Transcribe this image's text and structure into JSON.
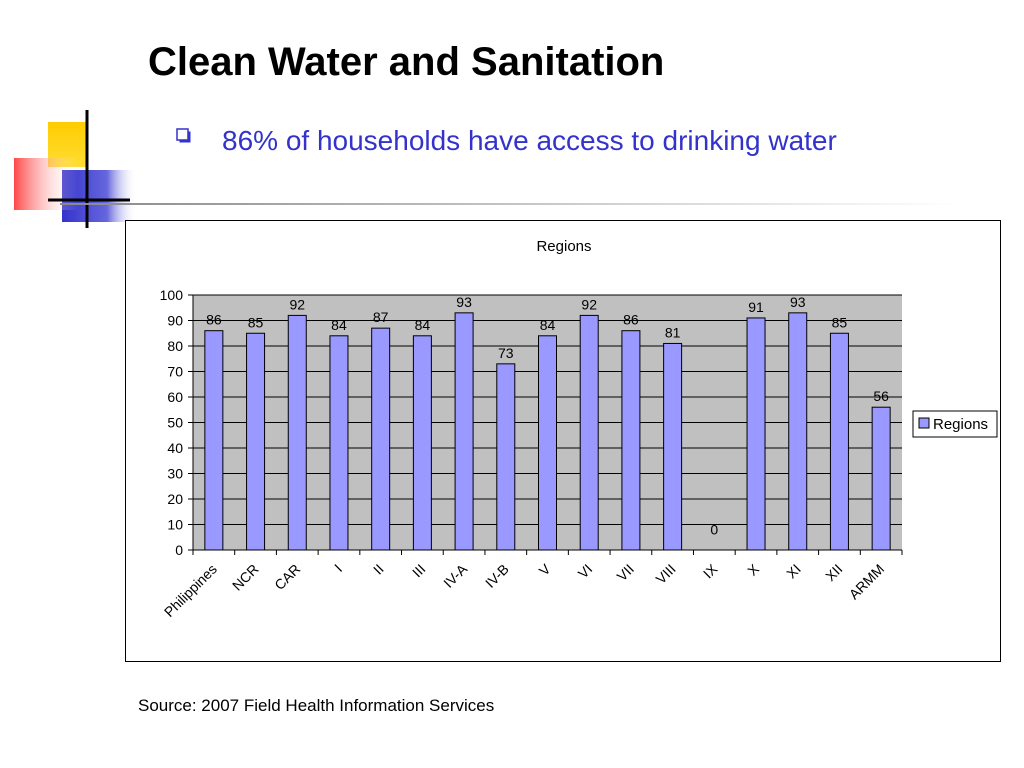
{
  "slide": {
    "title": "Clean Water and Sanitation",
    "bullet": "86% of households have access to drinking water",
    "source": "Source: 2007 Field Health Information Services"
  },
  "colors": {
    "bar_fill": "#9999ff",
    "plot_bg": "#c0c0c0",
    "bullet_text": "#3333cc",
    "deco_yellow": "#ffcc00",
    "deco_blue": "#3333cc",
    "deco_red": "#ff3333"
  },
  "chart_data": {
    "type": "bar",
    "title": "Regions",
    "categories": [
      "Philippines",
      "NCR",
      "CAR",
      "I",
      "II",
      "III",
      "IV-A",
      "IV-B",
      "V",
      "VI",
      "VII",
      "VIII",
      "IX",
      "X",
      "XI",
      "XII",
      "ARMM"
    ],
    "series": [
      {
        "name": "Regions",
        "values": [
          86,
          85,
          92,
          84,
          87,
          84,
          93,
          73,
          84,
          92,
          86,
          81,
          0,
          91,
          93,
          85,
          56
        ]
      }
    ],
    "ylim": [
      0,
      100
    ],
    "yticks": [
      0,
      10,
      20,
      30,
      40,
      50,
      60,
      70,
      80,
      90,
      100
    ],
    "grid": true,
    "legend": "right",
    "data_labels": true
  }
}
